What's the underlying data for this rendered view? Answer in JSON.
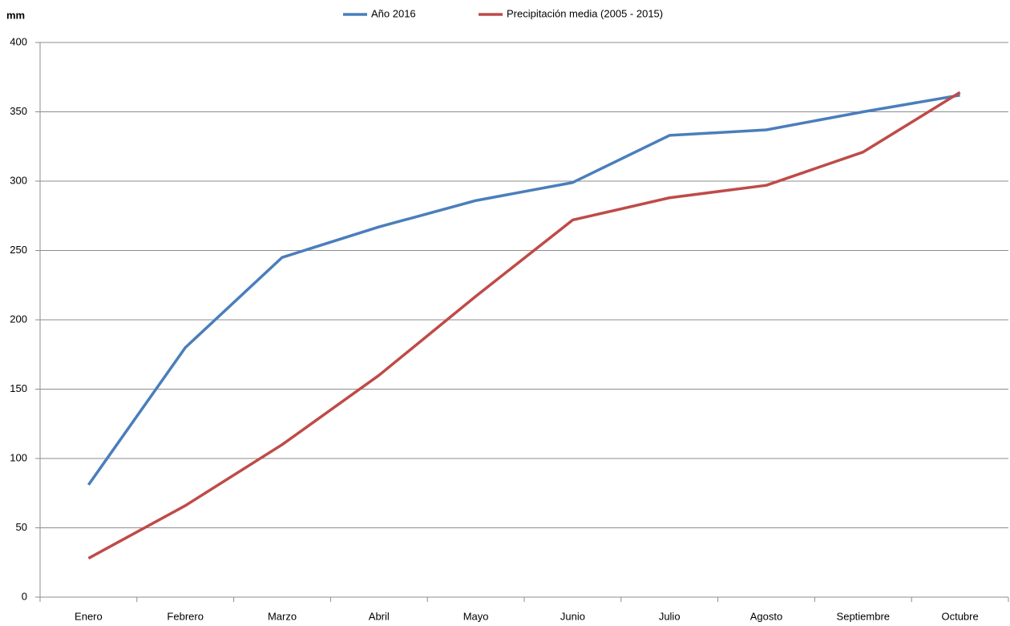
{
  "chart_data": {
    "type": "line",
    "y_label": "mm",
    "categories": [
      "Enero",
      "Febrero",
      "Marzo",
      "Abril",
      "Mayo",
      "Junio",
      "Julio",
      "Agosto",
      "Septiembre",
      "Octubre"
    ],
    "series": [
      {
        "name": "Año 2016",
        "color": "#4a7ebb",
        "values": [
          81,
          180,
          245,
          267,
          286,
          299,
          333,
          337,
          350,
          362
        ]
      },
      {
        "name": "Precipitación media (2005 - 2015)",
        "color": "#be4b48",
        "values": [
          28,
          66,
          110,
          160,
          217,
          272,
          288,
          297,
          321,
          364
        ]
      }
    ],
    "ylim": [
      0,
      400
    ],
    "yticks": [
      0,
      50,
      100,
      150,
      200,
      250,
      300,
      350,
      400
    ],
    "grid": true,
    "legend": "top"
  }
}
